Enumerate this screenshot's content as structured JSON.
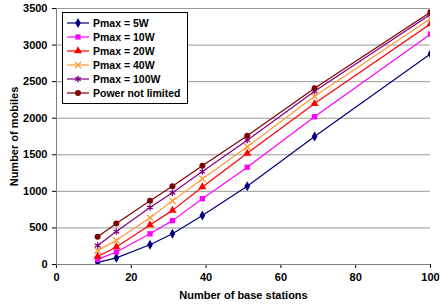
{
  "chart_data": {
    "type": "line",
    "x_label": "Number of base stations",
    "y_label": "Number of mobiles",
    "xlim": [
      0,
      100
    ],
    "xticks": [
      0,
      20,
      40,
      60,
      80,
      100
    ],
    "ylim": [
      0,
      3500
    ],
    "yticks": [
      0,
      500,
      1000,
      1500,
      2000,
      2500,
      3000,
      3500
    ],
    "grid": "y",
    "legend": "top-left",
    "x": [
      11,
      16,
      25,
      31,
      39,
      51,
      69,
      100
    ],
    "series": [
      {
        "name": "Pmax = 5W",
        "color": "#000080",
        "marker": "diamond",
        "values": [
          30,
          90,
          270,
          420,
          670,
          1070,
          1750,
          2880
        ]
      },
      {
        "name": "Pmax = 10W",
        "color": "#ff00ff",
        "marker": "square",
        "values": [
          70,
          170,
          420,
          600,
          900,
          1330,
          2020,
          3150
        ]
      },
      {
        "name": "Pmax = 20W",
        "color": "#ff0000",
        "marker": "triangle",
        "values": [
          110,
          240,
          540,
          740,
          1060,
          1520,
          2200,
          3290
        ]
      },
      {
        "name": "Pmax = 40W",
        "color": "#ff9933",
        "marker": "times",
        "values": [
          190,
          330,
          640,
          870,
          1170,
          1610,
          2300,
          3360
        ]
      },
      {
        "name": "Pmax = 100W",
        "color": "#800080",
        "marker": "asterisk",
        "values": [
          260,
          450,
          780,
          980,
          1270,
          1700,
          2370,
          3420
        ]
      },
      {
        "name": "Power not limited",
        "color": "#800000",
        "marker": "circle",
        "values": [
          380,
          560,
          870,
          1070,
          1350,
          1760,
          2410,
          3450
        ]
      }
    ]
  }
}
